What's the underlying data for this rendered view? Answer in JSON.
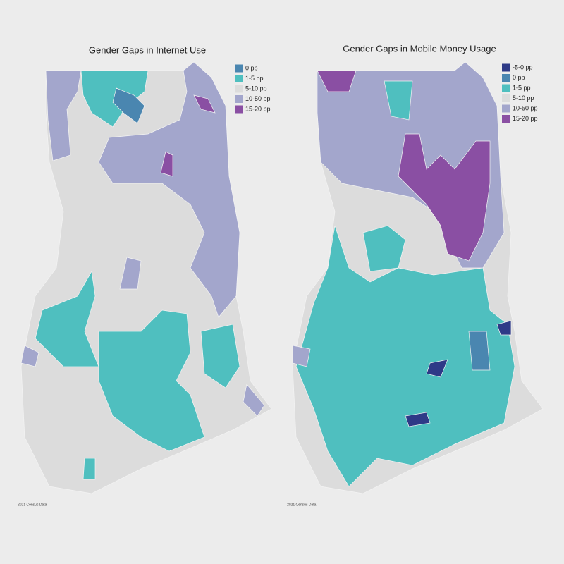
{
  "maps": [
    {
      "title": "Gender Gaps in Internet Use",
      "legend": [
        {
          "label": "0 pp",
          "color": "#4a86b0"
        },
        {
          "label": "1-5 pp",
          "color": "#4fbfbf"
        },
        {
          "label": "5-10 pp",
          "color": "#dcdcdc"
        },
        {
          "label": "10-50 pp",
          "color": "#a3a6cc"
        },
        {
          "label": "15-20 pp",
          "color": "#8a4fa3"
        }
      ],
      "source": "2021 Census Data"
    },
    {
      "title": "Gender Gaps in Mobile Money Usage",
      "legend": [
        {
          "label": "-5-0 pp",
          "color": "#2e3a87"
        },
        {
          "label": "0 pp",
          "color": "#4a86b0"
        },
        {
          "label": "1-5 pp",
          "color": "#4fbfbf"
        },
        {
          "label": "5-10 pp",
          "color": "#dcdcdc"
        },
        {
          "label": "10-50 pp",
          "color": "#a3a6cc"
        },
        {
          "label": "15-20 pp",
          "color": "#8a4fa3"
        }
      ],
      "source": "2021 Census Data"
    }
  ]
}
